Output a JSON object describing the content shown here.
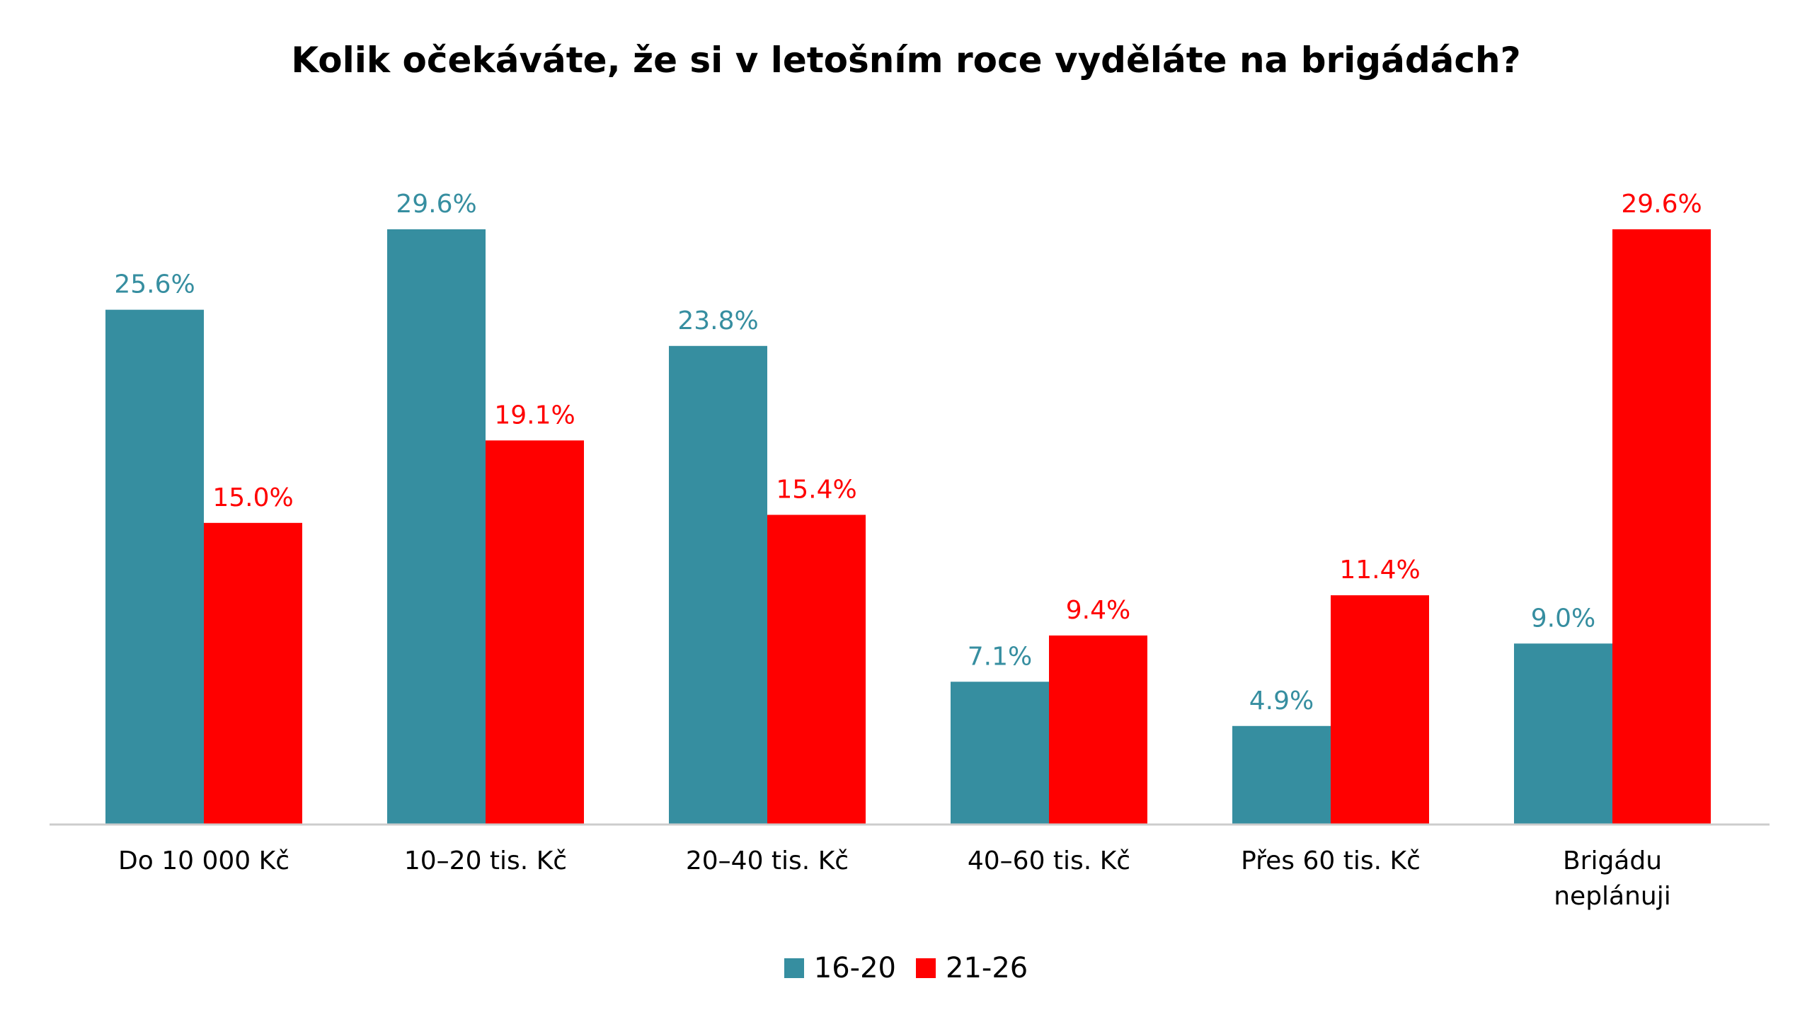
{
  "colors": {
    "series_1": "#368ea0",
    "series_2": "#ff0000"
  },
  "chart_data": {
    "type": "bar",
    "title": "Kolik očekáváte, že si v letošním roce vyděláte na brigádách?",
    "categories": [
      [
        "Do 10 000 Kč"
      ],
      [
        "10–20 tis. Kč"
      ],
      [
        "20–40 tis. Kč"
      ],
      [
        "40–60 tis. Kč"
      ],
      [
        "Přes 60 tis. Kč"
      ],
      [
        "Brigádu",
        "neplánuji"
      ]
    ],
    "series": [
      {
        "name": "16-20",
        "values": [
          25.6,
          29.6,
          23.8,
          7.1,
          4.9,
          9.0
        ],
        "labels": [
          "25.6%",
          "29.6%",
          "23.8%",
          "7.1%",
          "4.9%",
          "9.0%"
        ]
      },
      {
        "name": "21-26",
        "values": [
          15.0,
          19.1,
          15.4,
          9.4,
          11.4,
          29.6
        ],
        "labels": [
          "15.0%",
          "19.1%",
          "15.4%",
          "9.4%",
          "11.4%",
          "29.6%"
        ]
      }
    ],
    "ylim": [
      0,
      29.6
    ],
    "grid": false,
    "legend": "bottom-center"
  }
}
